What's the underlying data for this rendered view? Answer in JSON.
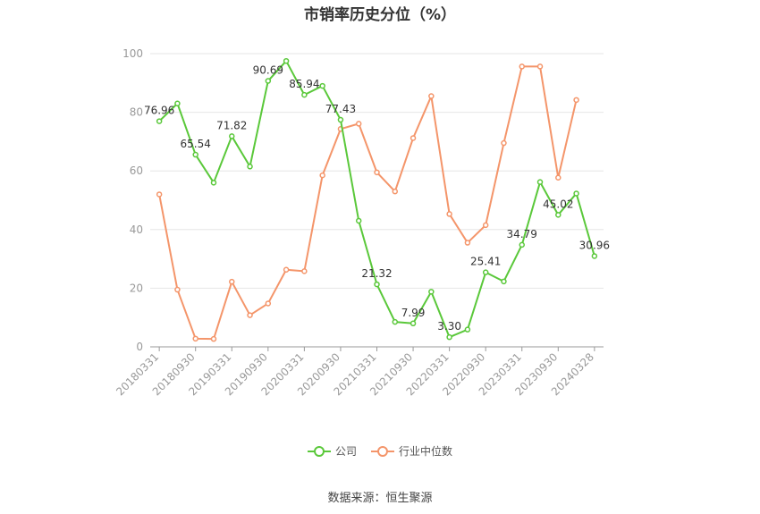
{
  "chart_data": {
    "type": "line",
    "title": "市销率历史分位（%）",
    "xlabel": "",
    "ylabel": "",
    "ylim": [
      0,
      100
    ],
    "yticks": [
      0,
      20,
      40,
      60,
      80,
      100
    ],
    "grid": true,
    "legend_position": "bottom",
    "x": [
      "20180331",
      "20180630",
      "20180930",
      "20181231",
      "20190331",
      "20190630",
      "20190930",
      "20191231",
      "20200331",
      "20200630",
      "20200930",
      "20201231",
      "20210331",
      "20210630",
      "20210930",
      "20211231",
      "20220331",
      "20220630",
      "20220930",
      "20221231",
      "20230331",
      "20230630",
      "20230930",
      "20231231",
      "20240328"
    ],
    "x_tick_labels": [
      "20180331",
      "20180930",
      "20190331",
      "20190930",
      "20200331",
      "20200930",
      "20210331",
      "20210930",
      "20220331",
      "20220930",
      "20230331",
      "20230930",
      "20240328"
    ],
    "series": [
      {
        "name": "公司",
        "color": "#5ac83a",
        "values": [
          76.96,
          83.0,
          65.54,
          56.0,
          71.82,
          61.5,
          90.69,
          97.5,
          85.94,
          89.0,
          77.43,
          43.0,
          21.32,
          8.5,
          7.99,
          18.8,
          3.3,
          5.9,
          25.41,
          22.3,
          34.79,
          56.2,
          45.02,
          52.3,
          30.96
        ],
        "labels": [
          "76.96",
          "",
          "65.54",
          "",
          "71.82",
          "",
          "90.69",
          "",
          "85.94",
          "",
          "77.43",
          "",
          "21.32",
          "",
          "7.99",
          "",
          "3.30",
          "",
          "25.41",
          "",
          "34.79",
          "",
          "45.02",
          "",
          "30.96"
        ]
      },
      {
        "name": "行业中位数",
        "color": "#f4956a",
        "values": [
          52.0,
          19.5,
          2.8,
          2.7,
          22.2,
          10.8,
          14.8,
          26.3,
          25.8,
          58.5,
          74.3,
          76.1,
          59.5,
          53.0,
          71.2,
          85.5,
          45.3,
          35.5,
          41.5,
          69.5,
          95.6,
          95.6,
          57.7,
          84.2,
          null
        ]
      }
    ]
  },
  "source_note": "数据来源：恒生聚源"
}
